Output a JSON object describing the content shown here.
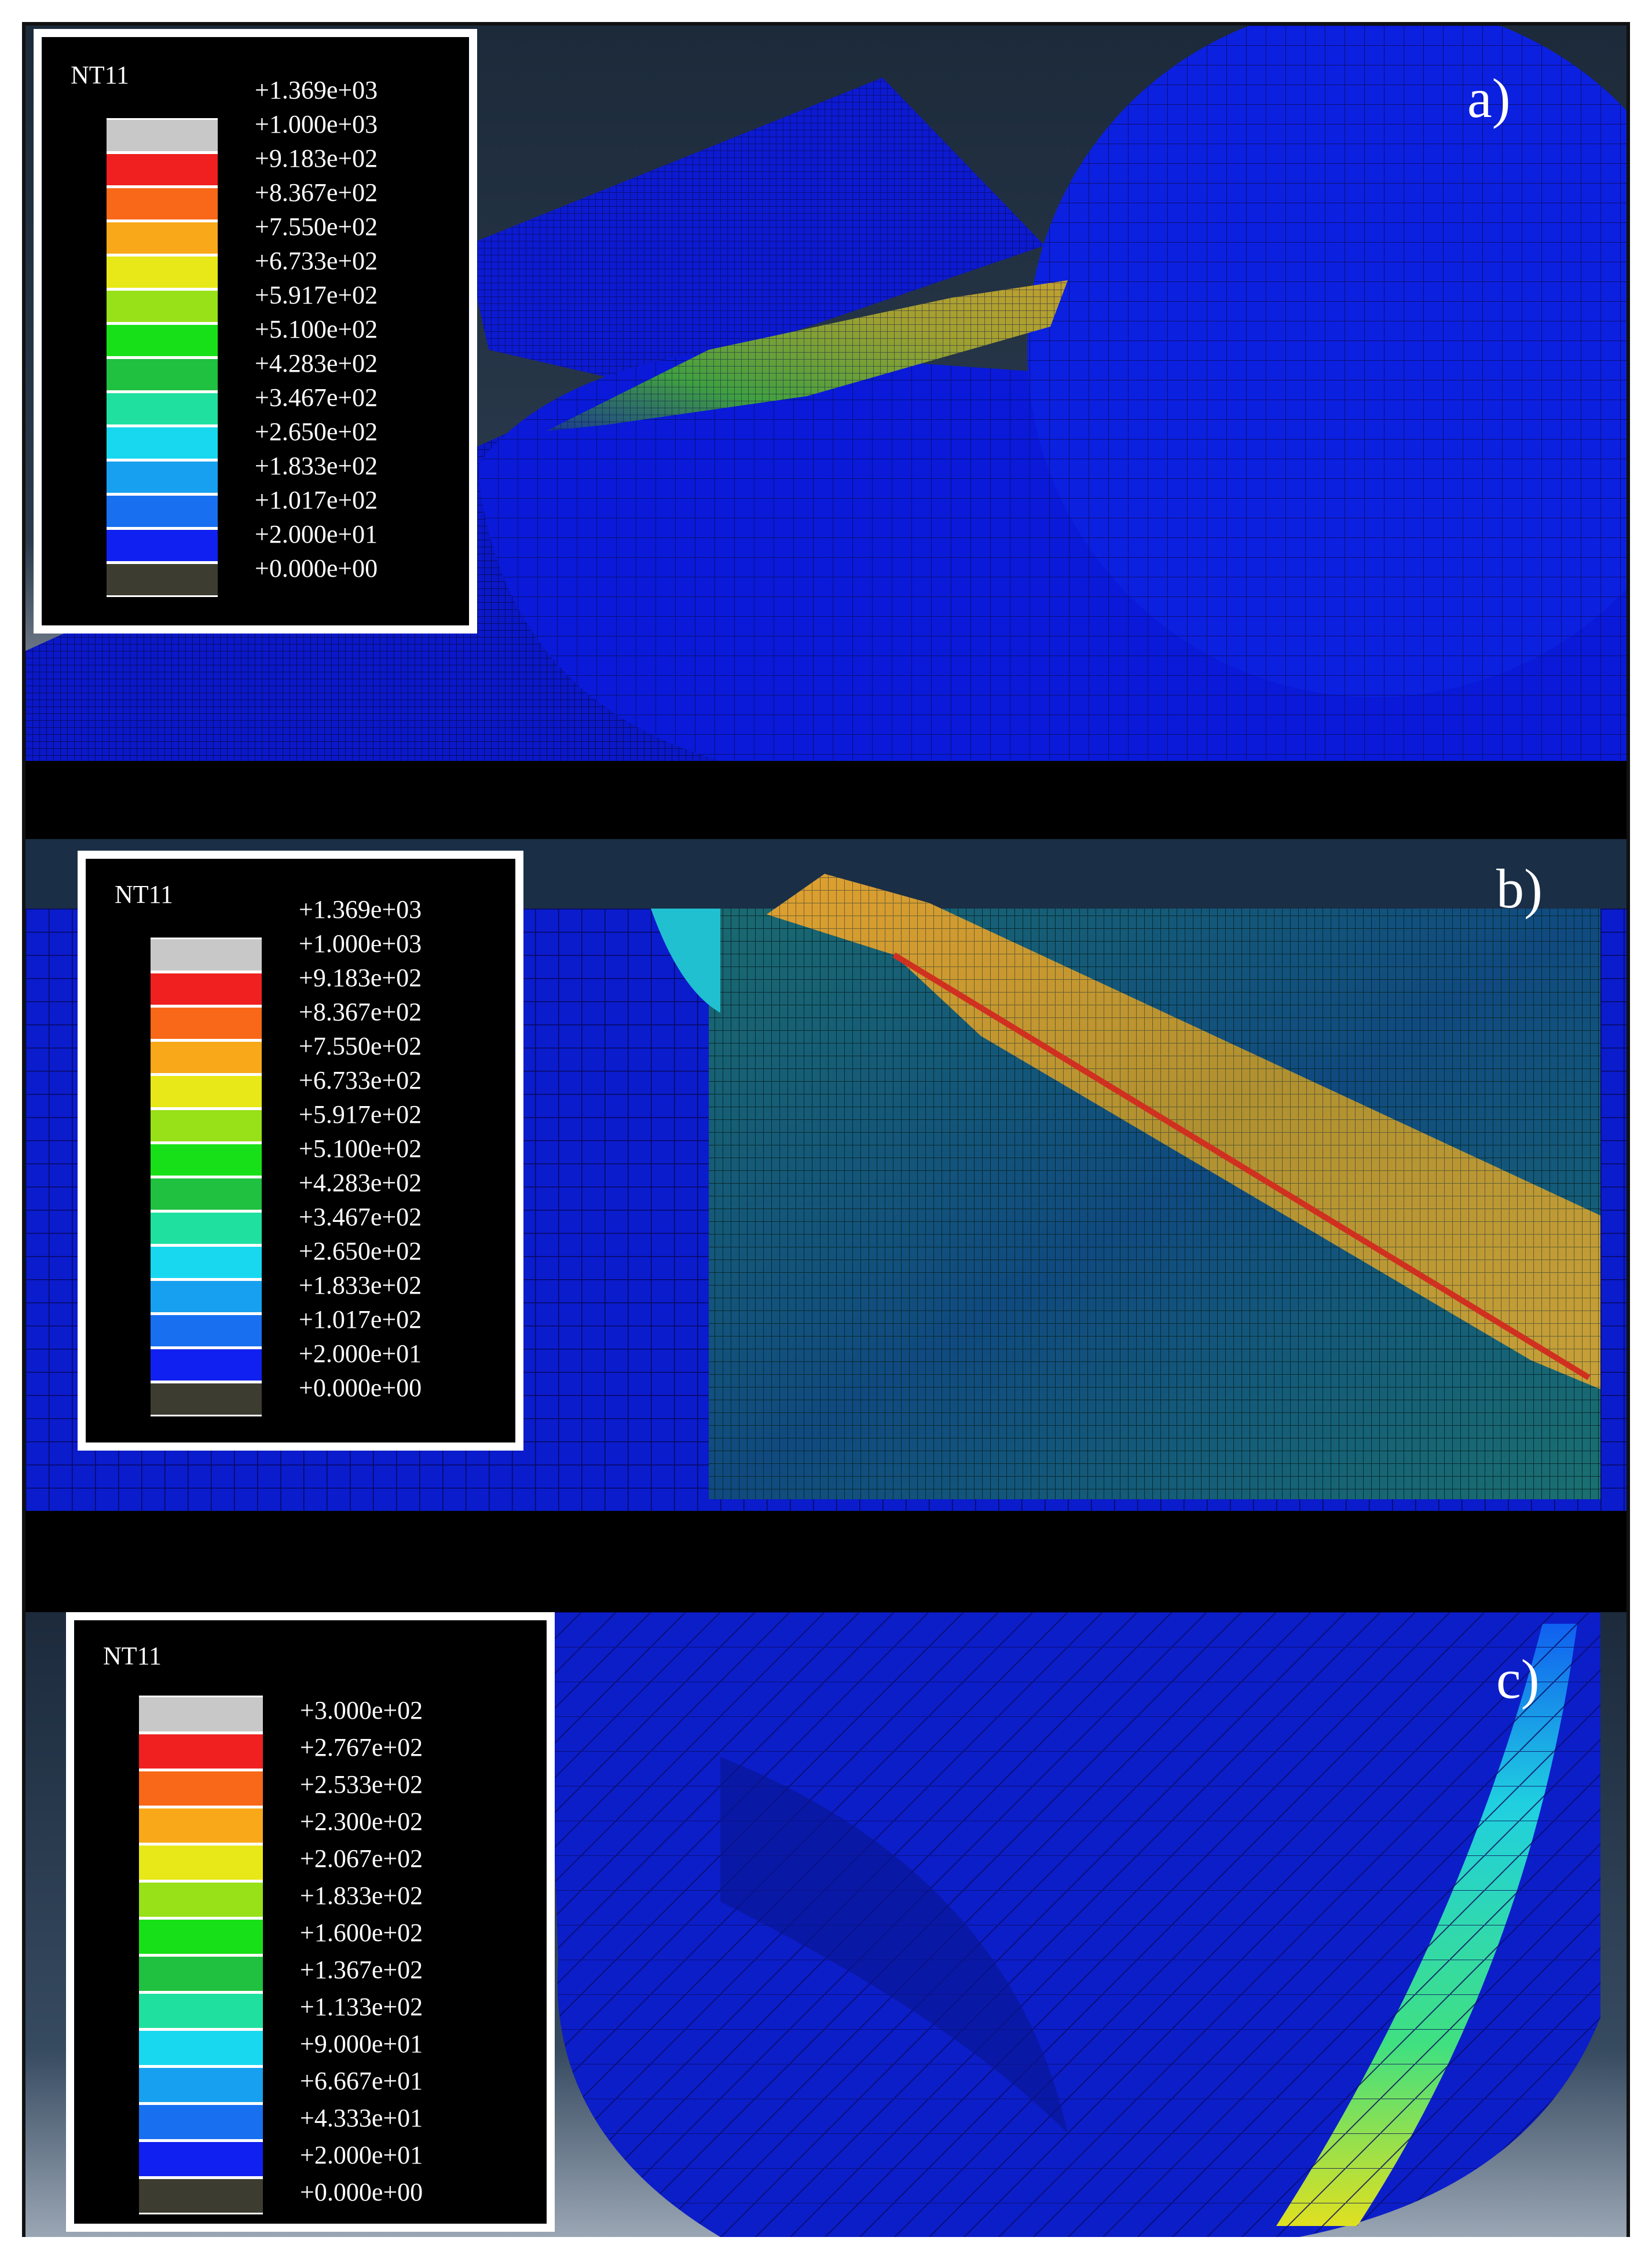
{
  "panels": [
    {
      "label": "a)",
      "variable": "NT11",
      "legend": [
        "+1.369e+03",
        "+1.000e+03",
        "+9.183e+02",
        "+8.367e+02",
        "+7.550e+02",
        "+6.733e+02",
        "+5.917e+02",
        "+5.100e+02",
        "+4.283e+02",
        "+3.467e+02",
        "+2.650e+02",
        "+1.833e+02",
        "+1.017e+02",
        "+2.000e+01",
        "+0.000e+00"
      ]
    },
    {
      "label": "b)",
      "variable": "NT11",
      "legend": [
        "+1.369e+03",
        "+1.000e+03",
        "+9.183e+02",
        "+8.367e+02",
        "+7.550e+02",
        "+6.733e+02",
        "+5.917e+02",
        "+5.100e+02",
        "+4.283e+02",
        "+3.467e+02",
        "+2.650e+02",
        "+1.833e+02",
        "+1.017e+02",
        "+2.000e+01",
        "+0.000e+00"
      ]
    },
    {
      "label": "c)",
      "variable": "NT11",
      "legend": [
        "+3.000e+02",
        "+2.767e+02",
        "+2.533e+02",
        "+2.300e+02",
        "+2.067e+02",
        "+1.833e+02",
        "+1.600e+02",
        "+1.367e+02",
        "+1.133e+02",
        "+9.000e+01",
        "+6.667e+01",
        "+4.333e+01",
        "+2.000e+01",
        "+0.000e+00"
      ]
    }
  ],
  "colormap": [
    "#c8c8c8",
    "#f02020",
    "#f86818",
    "#f8a818",
    "#e8e818",
    "#98e018",
    "#18e018",
    "#20c040",
    "#20e0a0",
    "#18d8f0",
    "#18a0f0",
    "#1870f0",
    "#1020f0",
    "#3c3c30"
  ]
}
